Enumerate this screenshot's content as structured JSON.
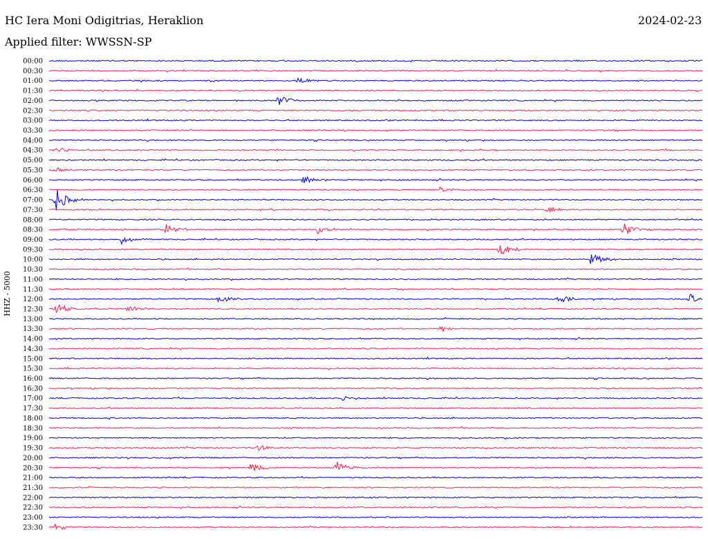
{
  "header": {
    "station": "HC Iera Moni Odigitrias, Heraklion",
    "date": "2024-02-23",
    "filter": "Applied filter: WWSSN-SP"
  },
  "chart_data": {
    "type": "helicorder",
    "ylabel": "HHZ - 5000",
    "colors": [
      "#0000dd",
      "#ff1f4b"
    ],
    "rows": [
      "00:00",
      "00:30",
      "01:00",
      "01:30",
      "02:00",
      "02:30",
      "03:00",
      "03:30",
      "04:00",
      "04:30",
      "05:00",
      "05:30",
      "06:00",
      "06:30",
      "07:00",
      "07:30",
      "08:00",
      "08:30",
      "09:00",
      "09:30",
      "10:00",
      "10:30",
      "11:00",
      "11:30",
      "12:00",
      "12:30",
      "13:00",
      "13:30",
      "14:00",
      "14:30",
      "15:00",
      "15:30",
      "16:00",
      "16:30",
      "17:00",
      "17:30",
      "18:00",
      "18:30",
      "19:00",
      "19:30",
      "20:00",
      "20:30",
      "21:00",
      "21:30",
      "22:00",
      "22:30",
      "23:00",
      "23:30"
    ],
    "events": [
      {
        "row": "01:00",
        "t": 0.38,
        "amp": 5
      },
      {
        "row": "02:00",
        "t": 0.35,
        "amp": 8
      },
      {
        "row": "04:30",
        "t": 0.01,
        "amp": 4
      },
      {
        "row": "05:30",
        "t": 0.01,
        "amp": 5
      },
      {
        "row": "06:00",
        "t": 0.39,
        "amp": 6
      },
      {
        "row": "06:30",
        "t": 0.6,
        "amp": 6
      },
      {
        "row": "07:00",
        "t": 0.01,
        "amp": 18
      },
      {
        "row": "07:30",
        "t": 0.76,
        "amp": 6
      },
      {
        "row": "08:30",
        "t": 0.18,
        "amp": 9
      },
      {
        "row": "08:30",
        "t": 0.41,
        "amp": 7
      },
      {
        "row": "08:30",
        "t": 0.88,
        "amp": 12
      },
      {
        "row": "09:00",
        "t": 0.11,
        "amp": 7
      },
      {
        "row": "09:30",
        "t": 0.69,
        "amp": 12
      },
      {
        "row": "10:00",
        "t": 0.83,
        "amp": 11
      },
      {
        "row": "12:00",
        "t": 0.26,
        "amp": 7
      },
      {
        "row": "12:00",
        "t": 0.78,
        "amp": 6
      },
      {
        "row": "12:00",
        "t": 0.98,
        "amp": 8
      },
      {
        "row": "12:30",
        "t": 0.01,
        "amp": 9
      },
      {
        "row": "12:30",
        "t": 0.12,
        "amp": 6
      },
      {
        "row": "13:30",
        "t": 0.6,
        "amp": 5
      },
      {
        "row": "17:00",
        "t": 0.45,
        "amp": 4
      },
      {
        "row": "19:30",
        "t": 0.32,
        "amp": 4
      },
      {
        "row": "20:30",
        "t": 0.31,
        "amp": 8
      },
      {
        "row": "20:30",
        "t": 0.44,
        "amp": 10
      },
      {
        "row": "23:30",
        "t": 0.01,
        "amp": 5
      }
    ]
  }
}
